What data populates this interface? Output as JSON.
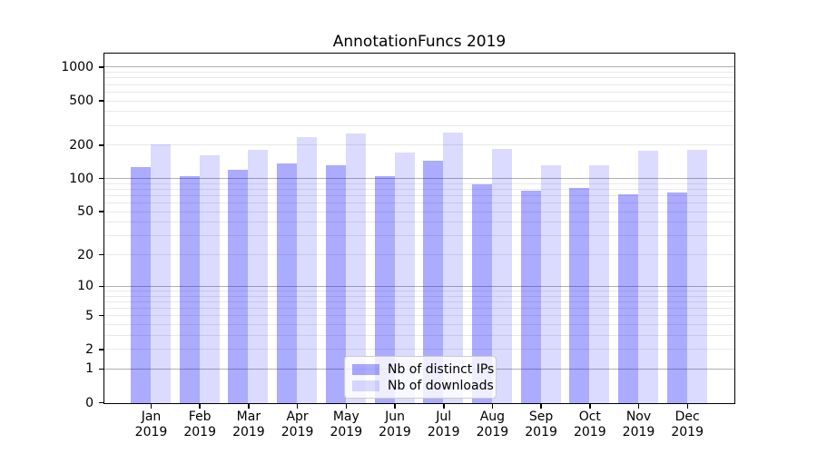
{
  "chart_data": {
    "type": "bar",
    "title": "AnnotationFuncs 2019",
    "categories": [
      "Jan",
      "Feb",
      "Mar",
      "Apr",
      "May",
      "Jun",
      "Jul",
      "Aug",
      "Sep",
      "Oct",
      "Nov",
      "Dec"
    ],
    "x_tick_sublabel": "2019",
    "series": [
      {
        "name": "Nb of distinct IPs",
        "color": "rgba(0,0,255,0.33)",
        "values": [
          128,
          106,
          121,
          137,
          134,
          107,
          145,
          90,
          79,
          83,
          73,
          76
        ]
      },
      {
        "name": "Nb of downloads",
        "color": "rgba(0,0,255,0.14)",
        "values": [
          206,
          164,
          185,
          237,
          255,
          173,
          260,
          187,
          133,
          133,
          179,
          183
        ]
      }
    ],
    "y_axis": {
      "scale": "symlog",
      "tick_values": [
        0,
        1,
        2,
        5,
        10,
        20,
        50,
        100,
        200,
        500,
        1000
      ],
      "max": 1310,
      "major_gridlines": [
        1,
        10,
        100,
        1000
      ],
      "minor_gridlines": [
        2,
        3,
        4,
        5,
        6,
        7,
        8,
        9,
        20,
        30,
        40,
        50,
        60,
        70,
        80,
        90,
        200,
        300,
        400,
        500,
        600,
        700,
        800,
        900
      ]
    },
    "legend": {
      "entries": [
        "Nb of distinct IPs",
        "Nb of downloads"
      ]
    },
    "colors": {
      "major_grid": "#b0b0b0",
      "minor_grid": "#e8e8e8",
      "spine": "#000000",
      "text": "#000000"
    }
  }
}
